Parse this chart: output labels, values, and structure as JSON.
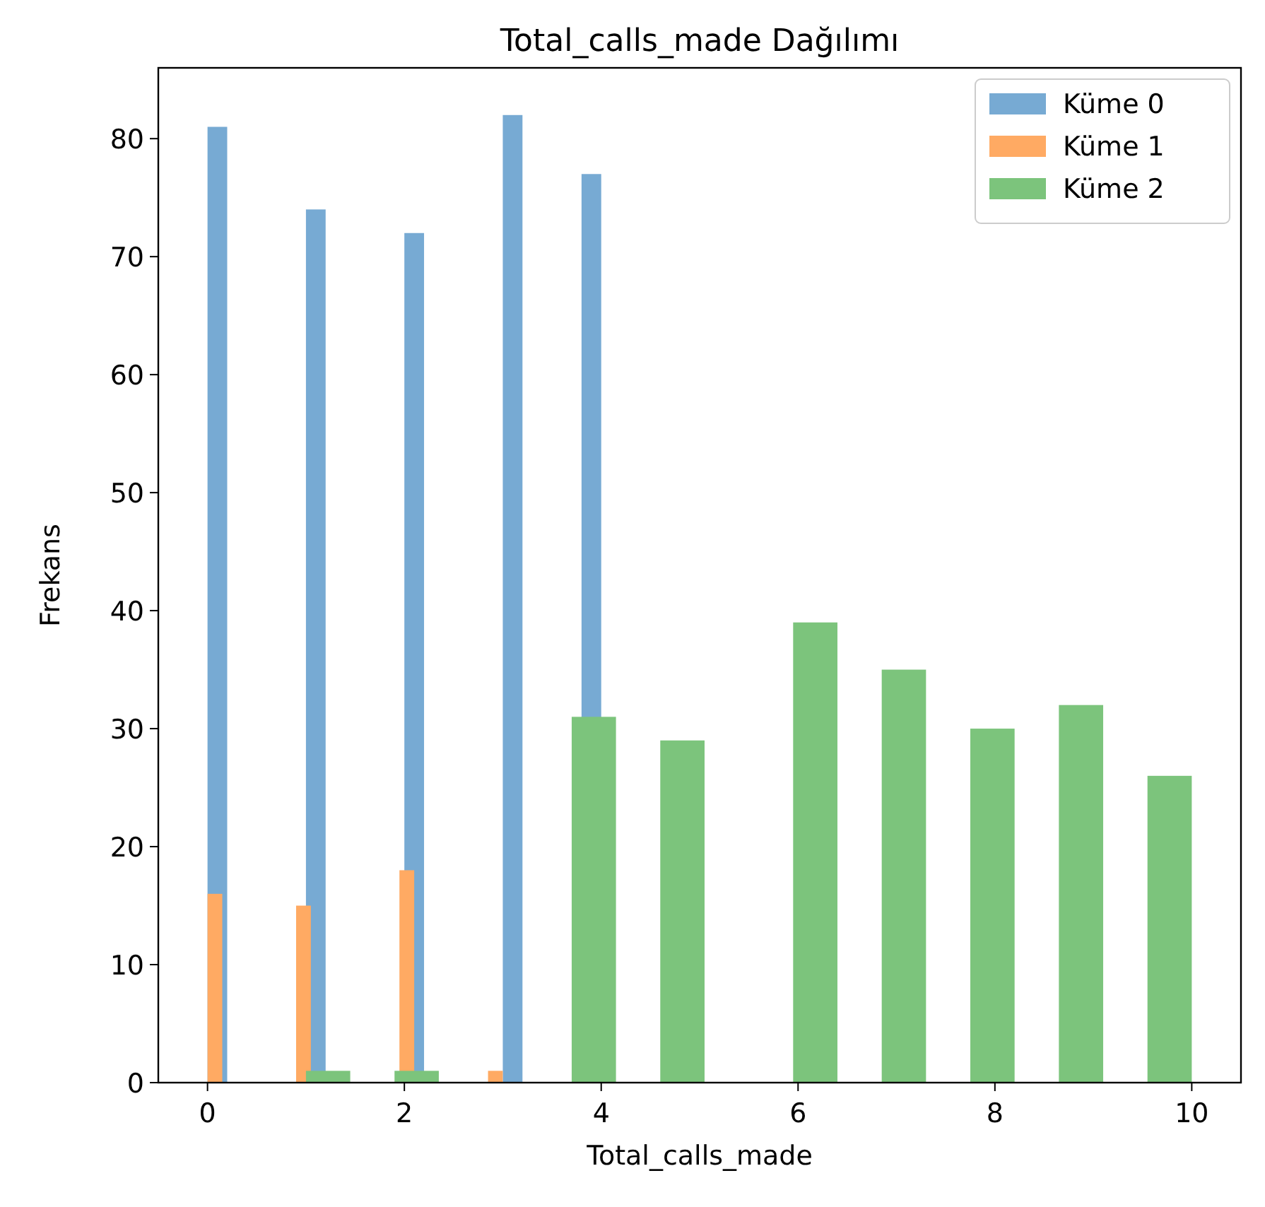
{
  "chart_data": {
    "type": "bar",
    "title": "Total_calls_made Dağılımı",
    "xlabel": "Total_calls_made",
    "ylabel": "Frekans",
    "series": [
      {
        "name": "Küme 0",
        "color": "#77aad3",
        "x": [
          0.1,
          0.3,
          0.5,
          0.7,
          0.9,
          1.1,
          1.3,
          1.5,
          1.7,
          1.9,
          2.1,
          2.3,
          2.5,
          2.7,
          2.9,
          3.1,
          3.3,
          3.5,
          3.7,
          3.9
        ],
        "values": [
          81,
          0,
          0,
          0,
          0,
          74,
          0,
          0,
          0,
          0,
          72,
          0,
          0,
          0,
          0,
          82,
          0,
          0,
          0,
          77
        ]
      },
      {
        "name": "Küme 1",
        "color": "#ffaa63",
        "x": [
          0.075,
          0.225,
          0.375,
          0.525,
          0.675,
          0.825,
          0.975,
          1.125,
          1.275,
          1.425,
          1.575,
          1.725,
          1.875,
          2.025,
          2.175,
          2.325,
          2.475,
          2.625,
          2.775,
          2.925
        ],
        "values": [
          16,
          0,
          0,
          0,
          0,
          0,
          15,
          0,
          0,
          0,
          0,
          0,
          0,
          18,
          0,
          0,
          0,
          0,
          0,
          1
        ]
      },
      {
        "name": "Küme 2",
        "color": "#7cc47c",
        "x": [
          1.225,
          1.675,
          2.125,
          2.575,
          3.025,
          3.475,
          3.925,
          4.375,
          4.825,
          5.275,
          5.725,
          6.175,
          6.625,
          7.075,
          7.525,
          7.975,
          8.425,
          8.875,
          9.325,
          9.775
        ],
        "values": [
          1,
          0,
          1,
          0,
          0,
          0,
          31,
          0,
          29,
          0,
          0,
          39,
          0,
          35,
          0,
          30,
          0,
          32,
          0,
          26
        ]
      }
    ],
    "xlim": [
      -0.5,
      10.5
    ],
    "xticks": [
      0,
      2,
      4,
      6,
      8,
      10
    ],
    "ylim": [
      0,
      86
    ],
    "yticks": [
      0,
      10,
      20,
      30,
      40,
      50,
      60,
      70,
      80
    ],
    "legend": "top right",
    "grid": false
  }
}
